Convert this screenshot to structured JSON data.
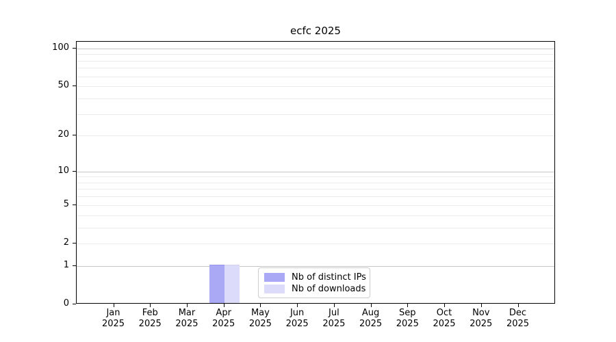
{
  "title": "ecfc 2025",
  "chart_data": {
    "type": "bar",
    "title": "ecfc 2025",
    "x_categories": [
      "Jan",
      "Feb",
      "Mar",
      "Apr",
      "May",
      "Jun",
      "Jul",
      "Aug",
      "Sep",
      "Oct",
      "Nov",
      "Dec"
    ],
    "x_year": "2025",
    "series": [
      {
        "name": "Nb of distinct IPs",
        "color": "#a9a9f6",
        "edge_color": "#9595ee",
        "values": [
          0,
          0,
          0,
          1,
          0,
          0,
          0,
          0,
          0,
          0,
          0,
          0
        ]
      },
      {
        "name": "Nb of downloads",
        "color": "#dcdcfa",
        "edge_color": "#cfcff6",
        "values": [
          0,
          0,
          0,
          1,
          0,
          0,
          0,
          0,
          0,
          0,
          0,
          0
        ]
      }
    ],
    "y_scale": "log1p",
    "ylim": [
      0,
      113
    ],
    "y_ticks": [
      0,
      1,
      2,
      5,
      10,
      20,
      50,
      100
    ],
    "y_tick_labels": [
      "0",
      "1",
      "2",
      "5",
      "10",
      "20",
      "50",
      "100"
    ],
    "y_gridlines_major": [
      1,
      10,
      100
    ],
    "y_gridlines_minor": [
      2,
      3,
      4,
      5,
      6,
      7,
      8,
      9,
      20,
      30,
      40,
      50,
      60,
      70,
      80,
      90
    ],
    "grid": "horizontal",
    "legend_position": "lower center"
  },
  "colors": {
    "grid_major": "#c6c6c6",
    "grid_minor": "#ebebeb",
    "axis": "#000000",
    "background": "#ffffff"
  }
}
